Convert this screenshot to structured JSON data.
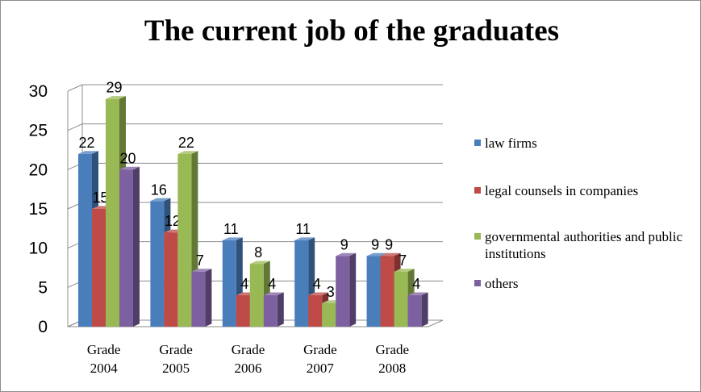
{
  "chart_data": {
    "type": "bar",
    "title": "The current job of the graduates",
    "categories": [
      [
        "Grade",
        "2004"
      ],
      [
        "Grade",
        "2005"
      ],
      [
        "Grade",
        "2006"
      ],
      [
        "Grade",
        "2007"
      ],
      [
        "Grade",
        "2008"
      ]
    ],
    "series": [
      {
        "name": "law firms",
        "color": "#4a7ebb",
        "values": [
          22,
          16,
          11,
          11,
          9
        ]
      },
      {
        "name": "legal counsels in companies",
        "color": "#be4b48",
        "values": [
          15,
          12,
          4,
          4,
          9
        ]
      },
      {
        "name": "governmental authorities and public institutions",
        "color": "#98b954",
        "values": [
          29,
          22,
          8,
          3,
          7
        ]
      },
      {
        "name": "others",
        "color": "#7d60a0",
        "values": [
          20,
          7,
          4,
          9,
          4
        ]
      }
    ],
    "yticks": [
      0,
      5,
      10,
      15,
      20,
      25,
      30
    ],
    "ylim": [
      0,
      30
    ],
    "grid": true,
    "legend": "right",
    "data_labels": true
  }
}
